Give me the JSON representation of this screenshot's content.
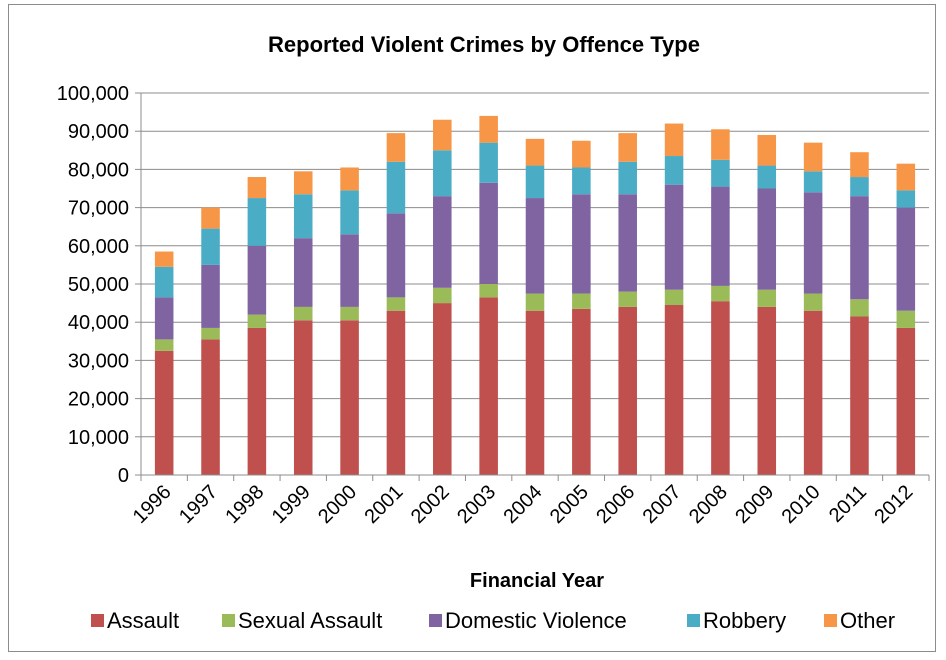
{
  "chart_data": {
    "type": "bar",
    "stacked": true,
    "title": "Reported Violent Crimes by Offence Type",
    "xlabel": "Financial Year",
    "ylabel": "",
    "ylim": [
      0,
      100000
    ],
    "yticks": [
      0,
      10000,
      20000,
      30000,
      40000,
      50000,
      60000,
      70000,
      80000,
      90000,
      100000
    ],
    "ytick_labels": [
      "0",
      "10,000",
      "20,000",
      "30,000",
      "40,000",
      "50,000",
      "60,000",
      "70,000",
      "80,000",
      "90,000",
      "100,000"
    ],
    "grid": true,
    "legend_position": "bottom",
    "categories": [
      "1996",
      "1997",
      "1998",
      "1999",
      "2000",
      "2001",
      "2002",
      "2003",
      "2004",
      "2005",
      "2006",
      "2007",
      "2008",
      "2009",
      "2010",
      "2011",
      "2012"
    ],
    "series": [
      {
        "name": "Assault",
        "color": "#c0504d",
        "values": [
          32500,
          35500,
          38500,
          40500,
          40500,
          43000,
          45000,
          46500,
          43000,
          43500,
          44000,
          44500,
          45500,
          44000,
          43000,
          41500,
          38500
        ]
      },
      {
        "name": "Sexual Assault",
        "color": "#9bbb59",
        "values": [
          3000,
          3000,
          3500,
          3500,
          3500,
          3500,
          4000,
          3500,
          4500,
          4000,
          4000,
          4000,
          4000,
          4500,
          4500,
          4500,
          4500
        ]
      },
      {
        "name": "Domestic Violence",
        "color": "#8064a2",
        "values": [
          11000,
          16500,
          18000,
          18000,
          19000,
          22000,
          24000,
          26500,
          25000,
          26000,
          25500,
          27500,
          26000,
          26500,
          26500,
          27000,
          27000
        ]
      },
      {
        "name": "Robbery",
        "color": "#4bacc6",
        "values": [
          8000,
          9500,
          12500,
          11500,
          11500,
          13500,
          12000,
          10500,
          8500,
          7000,
          8500,
          7500,
          7000,
          6000,
          5500,
          5000,
          4500
        ]
      },
      {
        "name": "Other",
        "color": "#f79646",
        "values": [
          4000,
          5500,
          5500,
          6000,
          6000,
          7500,
          8000,
          7000,
          7000,
          7000,
          7500,
          8500,
          8000,
          8000,
          7500,
          6500,
          7000
        ]
      }
    ]
  }
}
